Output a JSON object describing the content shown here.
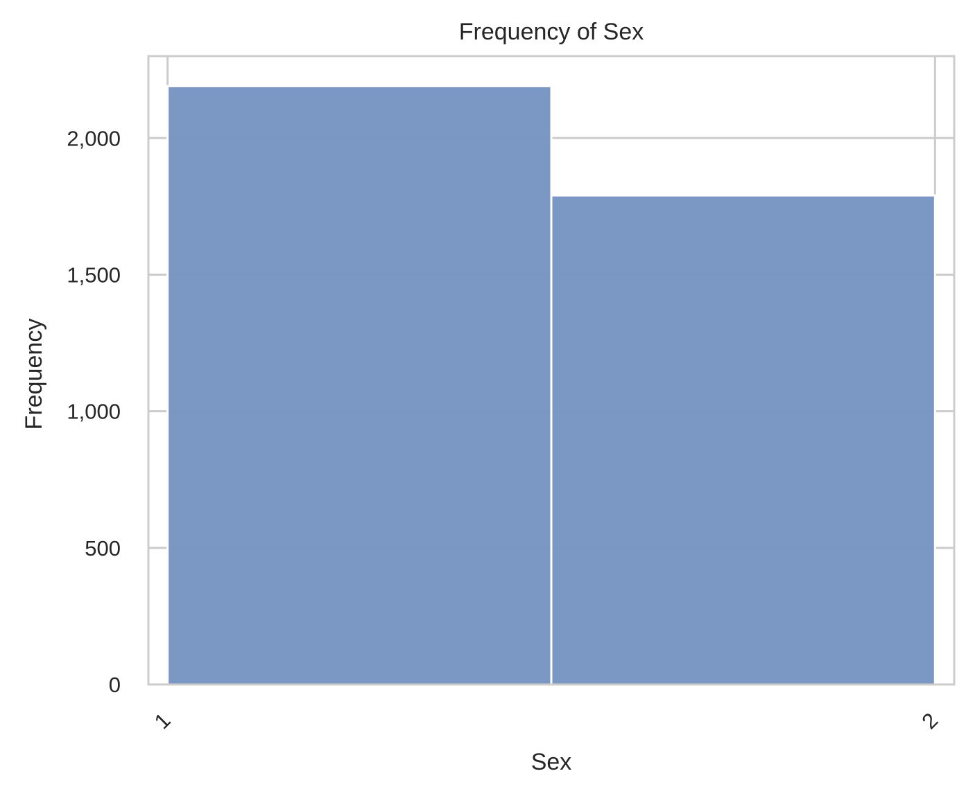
{
  "chart_data": {
    "type": "bar",
    "title": "Frequency of Sex",
    "xlabel": "Sex",
    "ylabel": "Frequency",
    "x_ticks": [
      "1",
      "2"
    ],
    "y_ticks": [
      {
        "value": 0,
        "label": "0"
      },
      {
        "value": 500,
        "label": "500"
      },
      {
        "value": 1000,
        "label": "1,000"
      },
      {
        "value": 1500,
        "label": "1,500"
      },
      {
        "value": 2000,
        "label": "2,000"
      }
    ],
    "bins": [
      {
        "x_start": 1.0,
        "x_end": 1.5,
        "value": 2190
      },
      {
        "x_start": 1.5,
        "x_end": 2.0,
        "value": 1790
      }
    ],
    "xlim": [
      0.975,
      2.025
    ],
    "ylim": [
      0,
      2300
    ],
    "grid": true,
    "colors": {
      "bar_fill": "#7896c4",
      "bar_stroke": "#ffffff",
      "grid": "#cccccc",
      "spine": "#cccccc",
      "text": "#262626"
    }
  }
}
